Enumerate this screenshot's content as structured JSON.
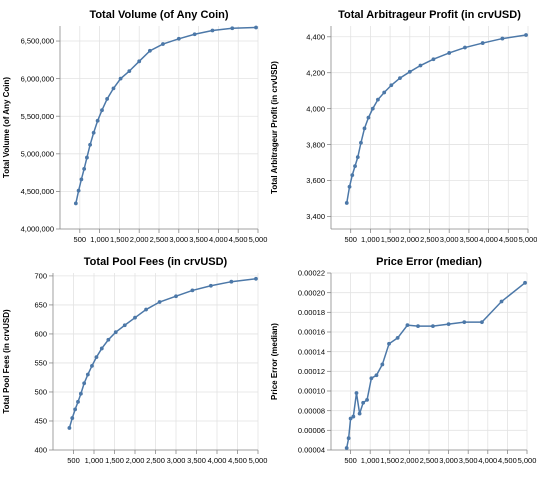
{
  "chart_data": [
    {
      "type": "line",
      "title": "Total Volume (of Any Coin)",
      "xlabel": "",
      "ylabel": "Total Volume (of Any Coin)",
      "xlim": [
        0,
        5000
      ],
      "ylim": [
        4000000,
        6700000
      ],
      "xticks": [
        500,
        1000,
        1500,
        2000,
        2500,
        3000,
        3500,
        4000,
        4500,
        5000
      ],
      "xtick_labels": [
        "500",
        "1,000",
        "1,500",
        "2,000",
        "2,500",
        "3,000",
        "3,500",
        "4,000",
        "4,500",
        "5,000"
      ],
      "yticks": [
        4000000,
        4500000,
        5000000,
        5500000,
        6000000,
        6500000
      ],
      "ytick_labels": [
        "4,000,000",
        "4,500,000",
        "5,000,000",
        "5,500,000",
        "6,000,000",
        "6,500,000"
      ],
      "grid": true,
      "color": "#4c78a8",
      "x": [
        400,
        470,
        540,
        610,
        680,
        760,
        850,
        950,
        1060,
        1190,
        1350,
        1530,
        1750,
        2000,
        2270,
        2600,
        3000,
        3400,
        3850,
        4350,
        4950
      ],
      "y": [
        4340000,
        4510000,
        4660000,
        4800000,
        4950000,
        5120000,
        5280000,
        5440000,
        5580000,
        5730000,
        5870000,
        6000000,
        6100000,
        6230000,
        6370000,
        6460000,
        6530000,
        6590000,
        6640000,
        6670000,
        6680000
      ]
    },
    {
      "type": "line",
      "title": "Total Arbitrageur Profit (in crvUSD)",
      "xlabel": "",
      "ylabel": "Total Arbitrageur Profit (in crvUSD)",
      "xlim": [
        0,
        5000
      ],
      "ylim": [
        3330,
        4460
      ],
      "xticks": [
        500,
        1000,
        1500,
        2000,
        2500,
        3000,
        3500,
        4000,
        4500,
        5000
      ],
      "xtick_labels": [
        "500",
        "1,000",
        "1,500",
        "2,000",
        "2,500",
        "3,000",
        "3,500",
        "4,000",
        "4,500",
        "5,000"
      ],
      "yticks": [
        3400,
        3600,
        3800,
        4000,
        4200,
        4400
      ],
      "ytick_labels": [
        "3,400",
        "3,600",
        "3,800",
        "4,000",
        "4,200",
        "4,400"
      ],
      "grid": true,
      "color": "#4c78a8",
      "x": [
        400,
        470,
        540,
        610,
        680,
        760,
        850,
        950,
        1060,
        1190,
        1350,
        1530,
        1750,
        2000,
        2270,
        2600,
        3000,
        3400,
        3850,
        4350,
        4950
      ],
      "y": [
        3475,
        3565,
        3630,
        3680,
        3730,
        3810,
        3890,
        3950,
        4000,
        4050,
        4090,
        4130,
        4170,
        4205,
        4240,
        4275,
        4310,
        4340,
        4365,
        4390,
        4410
      ]
    },
    {
      "type": "line",
      "title": "Total Pool Fees (in crvUSD)",
      "xlabel": "",
      "ylabel": "Total Pool Fees (in crvUSD)",
      "xlim": [
        0,
        5000
      ],
      "ylim": [
        400,
        705
      ],
      "xticks": [
        500,
        1000,
        1500,
        2000,
        2500,
        3000,
        3500,
        4000,
        4500,
        5000
      ],
      "xtick_labels": [
        "500",
        "1,000",
        "1,500",
        "2,000",
        "2,500",
        "3,000",
        "3,500",
        "4,000",
        "4,500",
        "5,000"
      ],
      "yticks": [
        400,
        450,
        500,
        550,
        600,
        650,
        700
      ],
      "ytick_labels": [
        "400",
        "450",
        "500",
        "550",
        "600",
        "650",
        "700"
      ],
      "grid": true,
      "color": "#4c78a8",
      "x": [
        400,
        470,
        540,
        610,
        680,
        760,
        850,
        950,
        1060,
        1190,
        1350,
        1530,
        1750,
        2000,
        2270,
        2600,
        3000,
        3400,
        3850,
        4350,
        4950
      ],
      "y": [
        438,
        455,
        470,
        483,
        497,
        515,
        530,
        545,
        560,
        575,
        590,
        603,
        615,
        628,
        642,
        655,
        665,
        675,
        683,
        690,
        695
      ]
    },
    {
      "type": "line",
      "title": "Price Error (median)",
      "xlabel": "",
      "ylabel": "Price Error (median)",
      "xlim": [
        0,
        5000
      ],
      "ylim": [
        4e-05,
        0.00022
      ],
      "xticks": [
        500,
        1000,
        1500,
        2000,
        2500,
        3000,
        3500,
        4000,
        4500,
        5000
      ],
      "xtick_labels": [
        "500",
        "1,000",
        "1,500",
        "2,000",
        "2,500",
        "3,000",
        "3,500",
        "4,000",
        "4,500",
        "5,000"
      ],
      "yticks": [
        4e-05,
        6e-05,
        8e-05,
        0.0001,
        0.00012,
        0.00014,
        0.00016,
        0.00018,
        0.0002,
        0.00022
      ],
      "ytick_labels": [
        "0.00004",
        "0.00006",
        "0.00008",
        "0.00010",
        "0.00012",
        "0.00014",
        "0.00016",
        "0.00018",
        "0.00020",
        "0.00022"
      ],
      "grid": true,
      "color": "#4c78a8",
      "x": [
        400,
        450,
        500,
        570,
        650,
        730,
        820,
        920,
        1030,
        1160,
        1310,
        1480,
        1700,
        1950,
        2220,
        2600,
        3000,
        3400,
        3850,
        4350,
        4950
      ],
      "y": [
        4.2e-05,
        5.2e-05,
        7.2e-05,
        7.4e-05,
        9.8e-05,
        7.7e-05,
        8.8e-05,
        9.1e-05,
        0.000113,
        0.000116,
        0.000127,
        0.000148,
        0.000154,
        0.000167,
        0.000166,
        0.000166,
        0.000168,
        0.00017,
        0.00017,
        0.000191,
        0.00021
      ]
    }
  ]
}
